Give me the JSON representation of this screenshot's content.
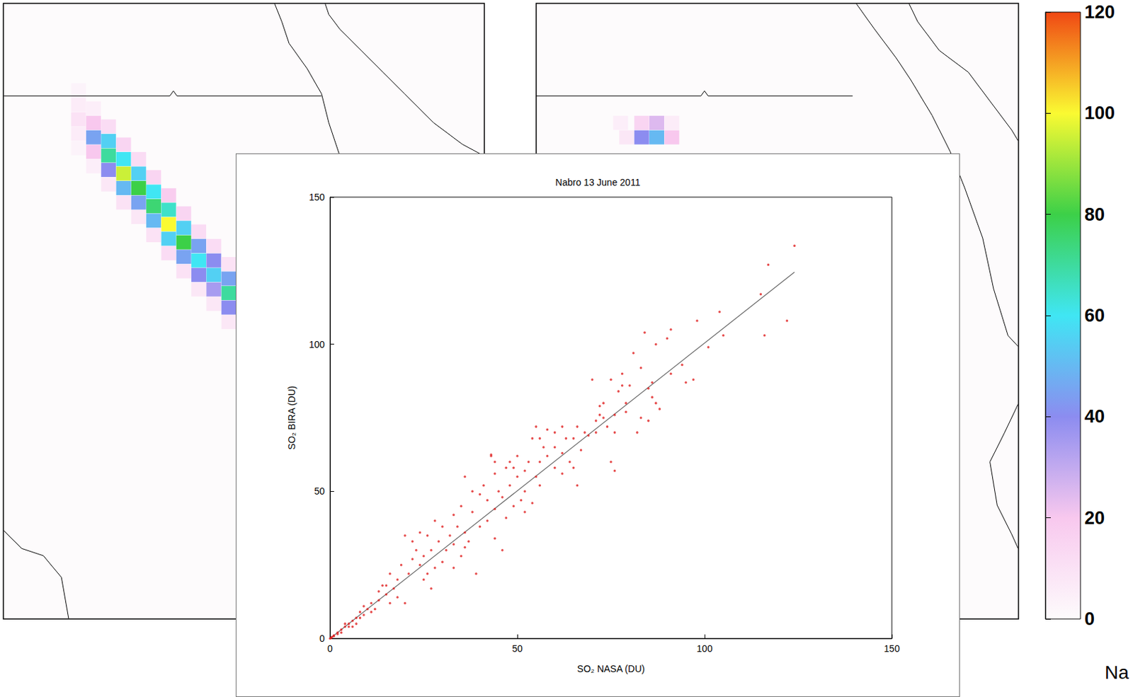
{
  "chart_data": [
    {
      "type": "scatter",
      "title": "Nabro 13 June 2011",
      "xlabel": "SO₂ NASA (DU)",
      "ylabel": "SO₂ BIRA (DU)",
      "xlim": [
        0,
        150
      ],
      "ylim": [
        0,
        150
      ],
      "xticks": [
        0,
        50,
        100,
        150
      ],
      "yticks": [
        0,
        50,
        100,
        150
      ],
      "grid": false,
      "color": "#e02020",
      "marker": "circle",
      "x": [
        124,
        117,
        115,
        122,
        116,
        104,
        101,
        105,
        98,
        91,
        95,
        90,
        84,
        87,
        86,
        87,
        88,
        83,
        81,
        78,
        75,
        77,
        80,
        76,
        79,
        73,
        70,
        71,
        72,
        74,
        76,
        83,
        82,
        75,
        76,
        68,
        65,
        66,
        63,
        62,
        60,
        58,
        55,
        54,
        57,
        53,
        50,
        52,
        55,
        56,
        58,
        60,
        62,
        64,
        50,
        48,
        47,
        45,
        44,
        43,
        46,
        49,
        51,
        52,
        47,
        44,
        42,
        40,
        41,
        38,
        40,
        42,
        44,
        46,
        38,
        36,
        35,
        33,
        34,
        36,
        32,
        30,
        28,
        29,
        31,
        33,
        35,
        37,
        27,
        26,
        25,
        24,
        23,
        22,
        22,
        20,
        21,
        19,
        18,
        17,
        16,
        15,
        14,
        16,
        13,
        12,
        11,
        10,
        9,
        8,
        7,
        7,
        6,
        5,
        5,
        4,
        3,
        3,
        2,
        2,
        1,
        1,
        0.5,
        0.3,
        0,
        4,
        6,
        8,
        9,
        11,
        13,
        15,
        18,
        20,
        25,
        27,
        28,
        30,
        24,
        26,
        33,
        39,
        36,
        44,
        43,
        48,
        49,
        52,
        54,
        56,
        60,
        56,
        62,
        65,
        66,
        67,
        69,
        71,
        73,
        78,
        86,
        85,
        79,
        91,
        94,
        97,
        85,
        72
      ],
      "values": [
        133.5,
        127,
        117,
        108,
        103,
        111,
        99,
        103,
        108,
        105,
        87,
        102,
        104,
        100,
        87,
        80,
        78,
        92,
        97,
        90,
        88,
        84,
        86,
        76,
        80,
        80,
        88,
        74,
        79,
        72,
        70,
        75,
        70,
        60,
        57,
        70,
        68,
        72,
        68,
        72,
        70,
        71,
        72,
        68,
        65,
        60,
        62,
        57,
        55,
        52,
        62,
        58,
        56,
        60,
        55,
        52,
        58,
        50,
        60,
        62,
        48,
        45,
        47,
        43,
        41,
        44,
        47,
        49,
        52,
        43,
        38,
        40,
        34,
        30,
        50,
        55,
        45,
        42,
        38,
        36,
        35,
        38,
        40,
        33,
        30,
        32,
        28,
        33,
        30,
        35,
        28,
        25,
        30,
        33,
        27,
        35,
        22,
        25,
        20,
        17,
        22,
        15,
        18,
        12,
        13,
        10,
        12,
        10,
        8,
        9,
        7,
        5,
        6,
        5,
        4,
        4,
        3,
        2,
        2,
        1.5,
        1,
        0.8,
        0.5,
        0.2,
        0,
        5,
        4,
        7,
        11,
        9,
        16,
        18,
        14,
        12,
        20,
        17,
        24,
        26,
        36,
        22,
        24,
        22,
        31,
        56,
        62.5,
        60,
        58,
        50,
        46,
        60,
        65,
        68,
        63,
        58,
        52,
        64,
        69,
        70,
        75,
        86,
        82,
        85,
        77,
        90,
        93,
        88,
        74,
        76
      ],
      "fit": {
        "x": [
          0,
          124
        ],
        "values": [
          0,
          124.5
        ],
        "color": "#666666",
        "line_style": "solid"
      }
    },
    {
      "type": "map",
      "tick_labels": false,
      "xlim": [
        30,
        46
      ],
      "ylim": [
        8,
        25
      ],
      "cells": [
        [
          32.5,
          22.6,
          3
        ],
        [
          32.5,
          22.2,
          6
        ],
        [
          32.5,
          21.8,
          10
        ],
        [
          32.5,
          21.4,
          6
        ],
        [
          32.5,
          21.0,
          3
        ],
        [
          33.0,
          22.1,
          5
        ],
        [
          33.0,
          21.7,
          20
        ],
        [
          33.0,
          21.3,
          45
        ],
        [
          33.0,
          20.9,
          20
        ],
        [
          33.0,
          20.5,
          5
        ],
        [
          33.5,
          21.6,
          12
        ],
        [
          33.5,
          21.2,
          55
        ],
        [
          33.5,
          20.8,
          70
        ],
        [
          33.5,
          20.4,
          40
        ],
        [
          33.5,
          20.0,
          8
        ],
        [
          34.0,
          21.1,
          15
        ],
        [
          34.0,
          20.7,
          60
        ],
        [
          34.0,
          20.3,
          95
        ],
        [
          34.0,
          19.9,
          50
        ],
        [
          34.0,
          19.5,
          10
        ],
        [
          34.5,
          20.7,
          12
        ],
        [
          34.5,
          20.3,
          55
        ],
        [
          34.5,
          19.9,
          80
        ],
        [
          34.5,
          19.5,
          45
        ],
        [
          34.5,
          19.1,
          8
        ],
        [
          35.0,
          20.2,
          15
        ],
        [
          35.0,
          19.8,
          60
        ],
        [
          35.0,
          19.4,
          75
        ],
        [
          35.0,
          19.0,
          50
        ],
        [
          35.0,
          18.6,
          10
        ],
        [
          35.5,
          19.7,
          18
        ],
        [
          35.5,
          19.3,
          65
        ],
        [
          35.5,
          18.9,
          100
        ],
        [
          35.5,
          18.5,
          55
        ],
        [
          35.5,
          18.1,
          12
        ],
        [
          36.0,
          19.2,
          15
        ],
        [
          36.0,
          18.8,
          55
        ],
        [
          36.0,
          18.4,
          80
        ],
        [
          36.0,
          18.0,
          45
        ],
        [
          36.0,
          17.6,
          10
        ],
        [
          36.5,
          18.7,
          12
        ],
        [
          36.5,
          18.3,
          45
        ],
        [
          36.5,
          17.9,
          60
        ],
        [
          36.5,
          17.5,
          40
        ],
        [
          36.5,
          17.1,
          8
        ],
        [
          37.0,
          18.3,
          12
        ],
        [
          37.0,
          17.9,
          40
        ],
        [
          37.0,
          17.5,
          55
        ],
        [
          37.0,
          17.1,
          35
        ],
        [
          37.0,
          16.7,
          8
        ],
        [
          37.5,
          17.8,
          10
        ],
        [
          37.5,
          17.4,
          45
        ],
        [
          37.5,
          17.0,
          70
        ],
        [
          37.5,
          16.6,
          40
        ],
        [
          37.5,
          16.2,
          8
        ]
      ]
    },
    {
      "type": "map",
      "tick_labels": false,
      "xlim": [
        30,
        46
      ],
      "ylim": [
        8,
        25
      ],
      "cells": [
        [
          32.8,
          21.7,
          5
        ],
        [
          33.5,
          21.7,
          15
        ],
        [
          34.0,
          21.7,
          25
        ],
        [
          34.5,
          21.7,
          6
        ],
        [
          33.0,
          21.3,
          8
        ],
        [
          33.5,
          21.3,
          40
        ],
        [
          34.0,
          21.3,
          50
        ],
        [
          34.5,
          21.3,
          20
        ]
      ]
    }
  ],
  "colorbar": {
    "range": [
      0,
      120
    ],
    "ticks": [
      0,
      20,
      40,
      60,
      80,
      100,
      120
    ]
  },
  "annotation": "Na"
}
